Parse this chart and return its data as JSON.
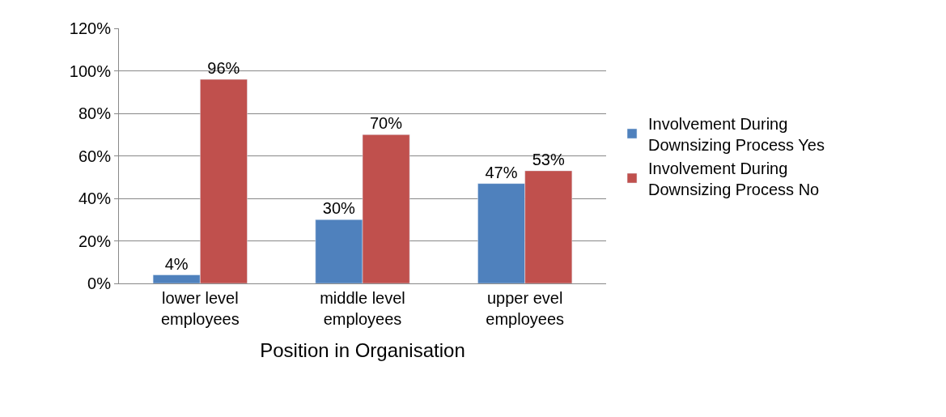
{
  "chart_data": {
    "type": "bar",
    "xlabel": "Position in Organisation",
    "categories": [
      "lower level employees",
      "middle level employees",
      "upper evel employees"
    ],
    "series": [
      {
        "name": "Involvement During Downsizing Process Yes",
        "color": "#4f81bd",
        "values": [
          4,
          30,
          47
        ],
        "value_labels": [
          "4%",
          "30%",
          "47%"
        ]
      },
      {
        "name": "Involvement During Downsizing Process No",
        "color": "#c0504d",
        "values": [
          96,
          70,
          53
        ],
        "value_labels": [
          "96%",
          "70%",
          "53%"
        ]
      }
    ],
    "ylim": [
      0,
      120
    ],
    "yticks": [
      {
        "value": 0,
        "label": "0%"
      },
      {
        "value": 20,
        "label": "20%"
      },
      {
        "value": 40,
        "label": "40%"
      },
      {
        "value": 60,
        "label": "60%"
      },
      {
        "value": 80,
        "label": "80%"
      },
      {
        "value": 100,
        "label": "100%"
      },
      {
        "value": 120,
        "label": "120%"
      }
    ],
    "grid": "y",
    "legend": "right"
  }
}
